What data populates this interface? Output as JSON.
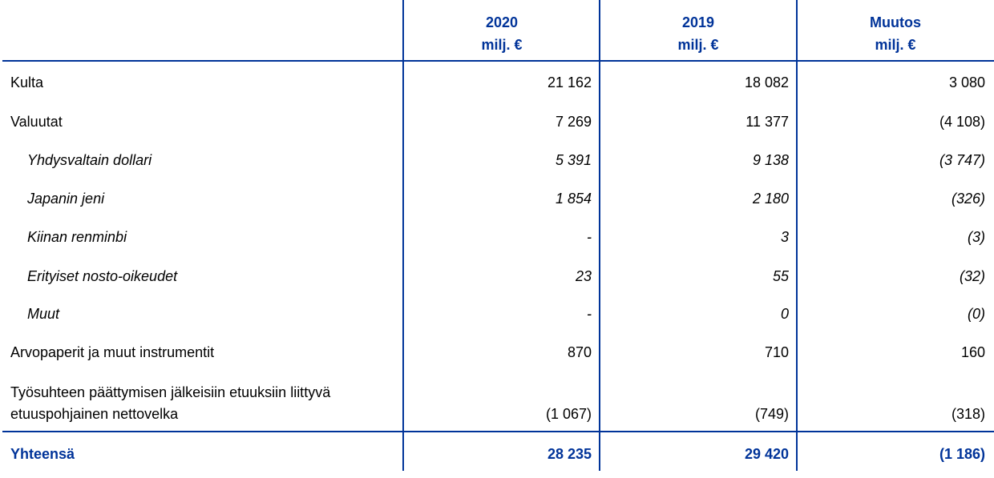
{
  "header": {
    "columns": [
      {
        "year": "2020",
        "unit": "milj. €"
      },
      {
        "year": "2019",
        "unit": "milj. €"
      },
      {
        "year": "Muutos",
        "unit": "milj. €"
      }
    ]
  },
  "rows": [
    {
      "label": "Kulta",
      "v2020": "21 162",
      "v2019": "18 082",
      "change": "3 080",
      "italic": false
    },
    {
      "label": "Valuutat",
      "v2020": "7 269",
      "v2019": "11 377",
      "change": "(4 108)",
      "italic": false
    },
    {
      "label": "Yhdysvaltain dollari",
      "v2020": "5 391",
      "v2019": "9 138",
      "change": "(3 747)",
      "italic": true
    },
    {
      "label": "Japanin jeni",
      "v2020": "1 854",
      "v2019": "2 180",
      "change": "(326)",
      "italic": true
    },
    {
      "label": "Kiinan renminbi",
      "v2020": "-",
      "v2019": "3",
      "change": "(3)",
      "italic": true
    },
    {
      "label": "Erityiset nosto-oikeudet",
      "v2020": "23",
      "v2019": "55",
      "change": "(32)",
      "italic": true
    },
    {
      "label": "Muut",
      "v2020": "-",
      "v2019": "0",
      "change": "(0)",
      "italic": true
    },
    {
      "label": "Arvopaperit ja muut instrumentit",
      "v2020": "870",
      "v2019": "710",
      "change": "160",
      "italic": false
    },
    {
      "label": "Työsuhteen päättymisen jälkeisiin etuuksiin liittyvä",
      "label2": "etuuspohjainen nettovelka",
      "v2020": "(1 067)",
      "v2019": "(749)",
      "change": "(318)",
      "italic": false
    }
  ],
  "total": {
    "label": "Yhteensä",
    "v2020": "28 235",
    "v2019": "29 420",
    "change": "(1 186)"
  },
  "colors": {
    "accent": "#003399",
    "text": "#000000"
  }
}
